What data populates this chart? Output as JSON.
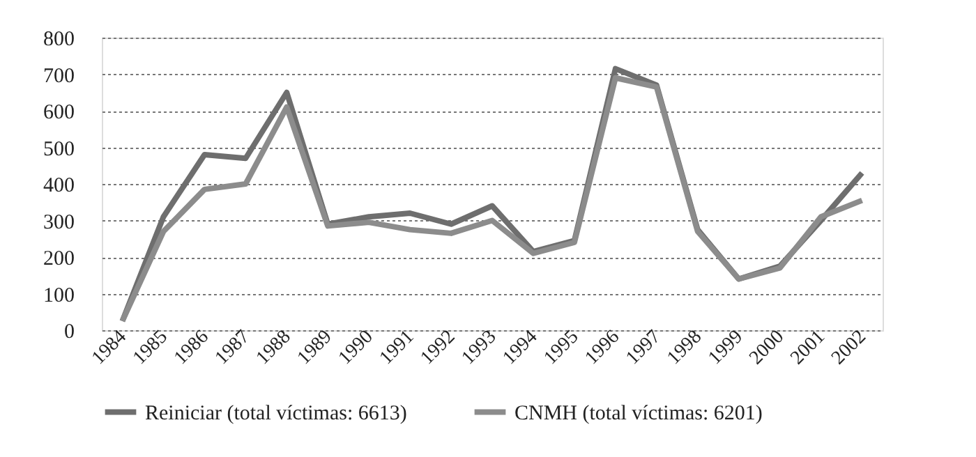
{
  "chart_data": {
    "type": "line",
    "categories": [
      "1984",
      "1985",
      "1986",
      "1987",
      "1988",
      "1989",
      "1990",
      "1991",
      "1992",
      "1993",
      "1994",
      "1995",
      "1996",
      "1997",
      "1998",
      "1999",
      "2000",
      "2001",
      "2002"
    ],
    "series": [
      {
        "name": "Reiniciar (total víctimas: 6613)",
        "color": "#6e6e6e",
        "values": [
          25,
          310,
          480,
          470,
          650,
          290,
          310,
          320,
          290,
          340,
          215,
          245,
          715,
          670,
          275,
          140,
          175,
          300,
          430
        ]
      },
      {
        "name": "CNMH (total víctimas: 6201)",
        "color": "#8c8c8c",
        "values": [
          25,
          270,
          385,
          400,
          610,
          285,
          295,
          275,
          265,
          300,
          210,
          240,
          690,
          665,
          270,
          140,
          170,
          310,
          355
        ]
      }
    ],
    "ylim": [
      0,
      800
    ],
    "yticks": [
      0,
      100,
      200,
      300,
      400,
      500,
      600,
      700,
      800
    ],
    "grid": "y",
    "legend": "bottom",
    "marker": "none",
    "line_style": "solid"
  }
}
